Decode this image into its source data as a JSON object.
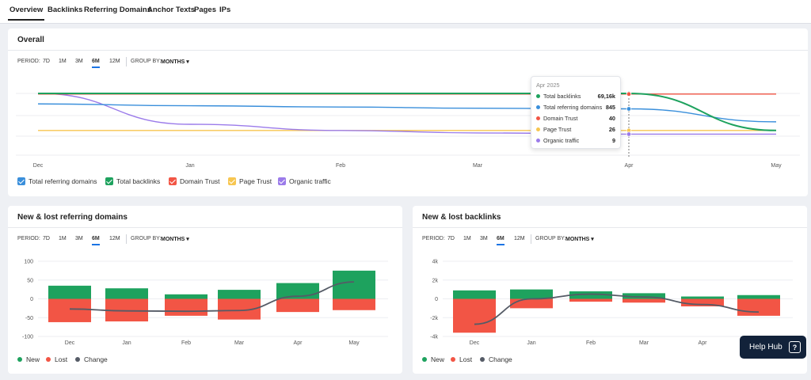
{
  "tabs": [
    "Overview",
    "Backlinks",
    "Referring Domains",
    "Anchor Texts",
    "Pages",
    "IPs"
  ],
  "period": {
    "label": "PERIOD:",
    "options": [
      "7D",
      "1M",
      "3M",
      "6M",
      "12M"
    ],
    "selected": "6M",
    "group_label": "GROUP BY:",
    "group_value": "MONTHS",
    "caret": "▾"
  },
  "overall": {
    "title": "Overall",
    "legend": [
      {
        "label": "Total referring domains",
        "color": "#3a8fdb"
      },
      {
        "label": "Total backlinks",
        "color": "#1ea25e"
      },
      {
        "label": "Domain Trust",
        "color": "#f25545"
      },
      {
        "label": "Page Trust",
        "color": "#f7c650"
      },
      {
        "label": "Organic traffic",
        "color": "#9b7bea"
      }
    ],
    "tooltip": {
      "date": "Apr 2025",
      "rows": [
        {
          "name": "Total backlinks",
          "value": "69,16k",
          "color": "#1ea25e"
        },
        {
          "name": "Total referring domains",
          "value": "845",
          "color": "#3a8fdb"
        },
        {
          "name": "Domain Trust",
          "value": "40",
          "color": "#f25545"
        },
        {
          "name": "Page Trust",
          "value": "26",
          "color": "#f7c650"
        },
        {
          "name": "Organic traffic",
          "value": "9",
          "color": "#9b7bea"
        }
      ]
    }
  },
  "ref_domains": {
    "title": "New & lost referring domains",
    "legend": [
      {
        "label": "New",
        "color": "#1ea25e"
      },
      {
        "label": "Lost",
        "color": "#f25545"
      },
      {
        "label": "Change",
        "color": "#555b66"
      }
    ]
  },
  "backlinks": {
    "title": "New & lost backlinks",
    "legend": [
      {
        "label": "New",
        "color": "#1ea25e"
      },
      {
        "label": "Lost",
        "color": "#f25545"
      },
      {
        "label": "Change",
        "color": "#555b66"
      }
    ]
  },
  "help_hub": {
    "label": "Help Hub",
    "icon": "?"
  },
  "chart_data": [
    {
      "type": "line",
      "title": "Overall",
      "x": [
        "Dec",
        "Jan",
        "Feb",
        "Mar",
        "Apr",
        "May"
      ],
      "y_normalized": true,
      "series": [
        {
          "name": "Total backlinks",
          "color": "#1ea25e",
          "values": [
            100,
            100,
            100,
            100,
            100,
            40
          ]
        },
        {
          "name": "Total referring domains",
          "color": "#3a8fdb",
          "values": [
            83,
            80,
            78,
            76,
            75,
            54
          ]
        },
        {
          "name": "Domain Trust",
          "color": "#f25545",
          "values": [
            99,
            99,
            99,
            99,
            99,
            99
          ]
        },
        {
          "name": "Page Trust",
          "color": "#f7c650",
          "values": [
            40,
            40,
            40,
            40,
            40,
            40
          ]
        },
        {
          "name": "Organic traffic",
          "color": "#9b7bea",
          "values": [
            100,
            50,
            40,
            36,
            34,
            34
          ]
        }
      ]
    },
    {
      "type": "bar",
      "title": "New & lost referring domains",
      "categories": [
        "Dec",
        "Jan",
        "Feb",
        "Mar",
        "Apr",
        "May"
      ],
      "ylim": [
        -100,
        100
      ],
      "yticks": [
        100,
        50,
        0,
        -50,
        -100
      ],
      "series": [
        {
          "name": "New",
          "color": "#1ea25e",
          "values": [
            35,
            28,
            12,
            24,
            42,
            75
          ]
        },
        {
          "name": "Lost",
          "color": "#f25545",
          "values": [
            -62,
            -60,
            -45,
            -55,
            -35,
            -30
          ]
        },
        {
          "name": "Change",
          "color": "#555b66",
          "values": [
            -27,
            -32,
            -33,
            -31,
            7,
            45
          ]
        }
      ]
    },
    {
      "type": "bar",
      "title": "New & lost backlinks",
      "categories": [
        "Dec",
        "Jan",
        "Feb",
        "Mar",
        "Apr",
        "May"
      ],
      "ylim": [
        -4000,
        4000
      ],
      "yticks": [
        4000,
        2000,
        0,
        -2000,
        -4000
      ],
      "yticklabels": [
        "4k",
        "2k",
        "0",
        "-2k",
        "-4k"
      ],
      "series": [
        {
          "name": "New",
          "color": "#1ea25e",
          "values": [
            900,
            1000,
            800,
            600,
            250,
            400
          ]
        },
        {
          "name": "Lost",
          "color": "#f25545",
          "values": [
            -3600,
            -1000,
            -300,
            -400,
            -800,
            -1800
          ]
        },
        {
          "name": "Change",
          "color": "#555b66",
          "values": [
            -2700,
            0,
            500,
            200,
            -600,
            -1400
          ]
        }
      ]
    }
  ]
}
